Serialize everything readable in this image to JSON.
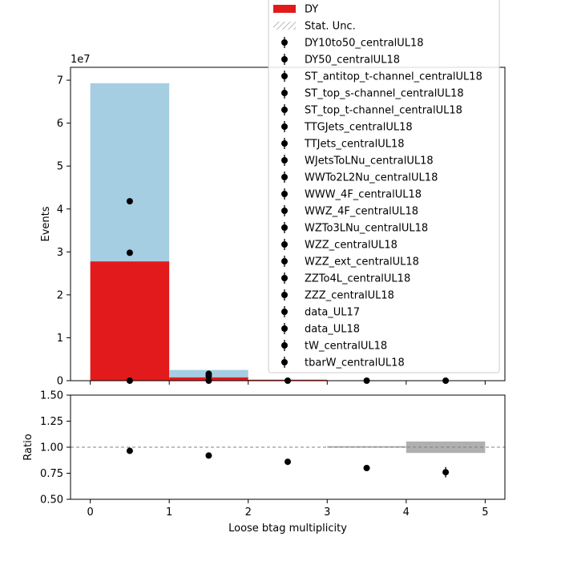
{
  "chart_data": [
    {
      "type": "bar",
      "panel": "main",
      "stacked": true,
      "x_edges": [
        0,
        1,
        2,
        3,
        4,
        5
      ],
      "xlim": [
        -0.25,
        5.25
      ],
      "ylim": [
        0,
        73000000.0
      ],
      "yticks": [
        0,
        1,
        2,
        3,
        4,
        5,
        6,
        7
      ],
      "ytick_labels": [
        "0",
        "1",
        "2",
        "3",
        "4",
        "5",
        "6",
        "7"
      ],
      "y_offset_label": "1e7",
      "ylabel": "Events",
      "series": [
        {
          "name": "DY",
          "color": "#e31a1c",
          "values": [
            27800000.0,
            800000.0,
            200000.0,
            50000.0,
            10000.0
          ]
        },
        {
          "name": "",
          "color": "#a6cee3",
          "values": [
            41500000.0,
            1700000.0,
            100000.0,
            20000.0,
            10000.0
          ]
        }
      ],
      "points": [
        {
          "x": 0.5,
          "y": 41800000.0
        },
        {
          "x": 0.5,
          "y": 29800000.0
        },
        {
          "x": 0.5,
          "y": 0.0
        },
        {
          "x": 1.5,
          "y": 1600000.0
        },
        {
          "x": 1.5,
          "y": 1100000.0
        },
        {
          "x": 1.5,
          "y": 0.0
        },
        {
          "x": 2.5,
          "y": 0.0
        },
        {
          "x": 3.5,
          "y": 0.0
        },
        {
          "x": 4.5,
          "y": 0.0
        }
      ],
      "legend": {
        "placement": "top-right",
        "entries": [
          {
            "label": "DY",
            "kind": "patch",
            "color": "#e31a1c"
          },
          {
            "label": "Stat. Unc.",
            "kind": "hatch"
          },
          {
            "label": "DY10to50_centralUL18",
            "kind": "marker"
          },
          {
            "label": "DY50_centralUL18",
            "kind": "marker"
          },
          {
            "label": "ST_antitop_t-channel_centralUL18",
            "kind": "marker"
          },
          {
            "label": "ST_top_s-channel_centralUL18",
            "kind": "marker"
          },
          {
            "label": "ST_top_t-channel_centralUL18",
            "kind": "marker"
          },
          {
            "label": "TTGJets_centralUL18",
            "kind": "marker"
          },
          {
            "label": "TTJets_centralUL18",
            "kind": "marker"
          },
          {
            "label": "WJetsToLNu_centralUL18",
            "kind": "marker"
          },
          {
            "label": "WWTo2L2Nu_centralUL18",
            "kind": "marker"
          },
          {
            "label": "WWW_4F_centralUL18",
            "kind": "marker"
          },
          {
            "label": "WWZ_4F_centralUL18",
            "kind": "marker"
          },
          {
            "label": "WZTo3LNu_centralUL18",
            "kind": "marker"
          },
          {
            "label": "WZZ_centralUL18",
            "kind": "marker"
          },
          {
            "label": "WZZ_ext_centralUL18",
            "kind": "marker"
          },
          {
            "label": "ZZTo4L_centralUL18",
            "kind": "marker"
          },
          {
            "label": "ZZZ_centralUL18",
            "kind": "marker"
          },
          {
            "label": "data_UL17",
            "kind": "marker"
          },
          {
            "label": "data_UL18",
            "kind": "marker"
          },
          {
            "label": "tW_centralUL18",
            "kind": "marker"
          },
          {
            "label": "tbarW_centralUL18",
            "kind": "marker"
          }
        ]
      }
    },
    {
      "type": "scatter",
      "panel": "ratio",
      "xlabel": "Loose btag multiplicity",
      "ylabel": "Ratio",
      "xlim": [
        -0.25,
        5.25
      ],
      "ylim": [
        0.5,
        1.5
      ],
      "xticks": [
        0,
        1,
        2,
        3,
        4,
        5
      ],
      "xtick_labels": [
        "0",
        "1",
        "2",
        "3",
        "4",
        "5"
      ],
      "yticks": [
        0.5,
        0.75,
        1.0,
        1.25,
        1.5
      ],
      "ytick_labels": [
        "0.50",
        "0.75",
        "1.00",
        "1.25",
        "1.50"
      ],
      "reference_line": 1.0,
      "x": [
        0.5,
        1.5,
        2.5,
        3.5,
        4.5
      ],
      "y": [
        0.965,
        0.92,
        0.86,
        0.8,
        0.76
      ],
      "yerr": [
        0.003,
        0.004,
        0.008,
        0.012,
        0.05
      ],
      "uncertainty_bands": [
        {
          "x0": 3,
          "x1": 4,
          "low": 0.995,
          "high": 1.01
        },
        {
          "x0": 4,
          "x1": 5,
          "low": 0.945,
          "high": 1.055
        }
      ]
    }
  ]
}
